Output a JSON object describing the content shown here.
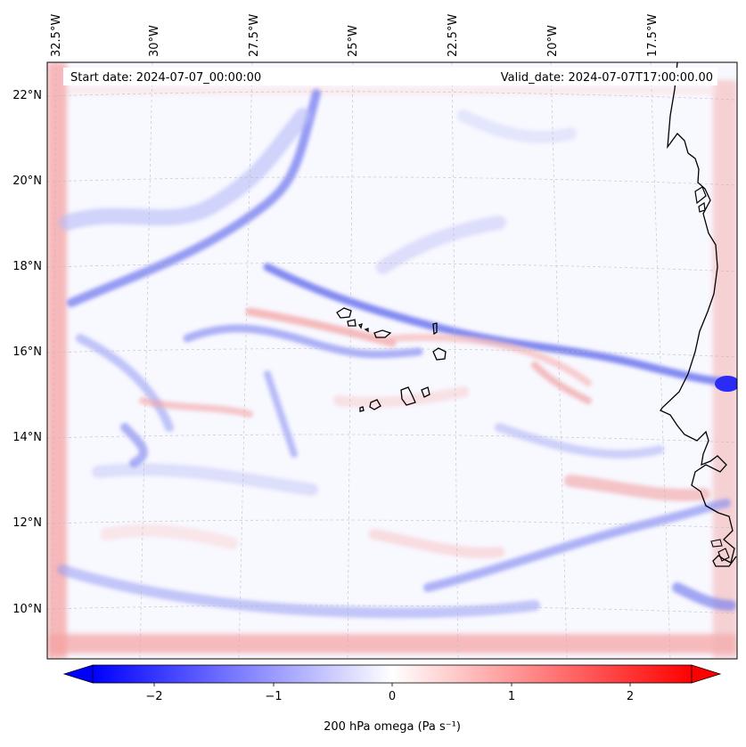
{
  "header": {
    "start_date": "Start date: 2024-07-07_00:00:00",
    "valid_date": "Valid_date: 2024-07-07T17:00:00.00"
  },
  "axes": {
    "lon_ticks": [
      "32.5°W",
      "30°W",
      "27.5°W",
      "25°W",
      "22.5°W",
      "20°W",
      "17.5°W"
    ],
    "lat_ticks": [
      "22°N",
      "20°N",
      "18°N",
      "16°N",
      "14°N",
      "12°N",
      "10°N"
    ]
  },
  "colorbar": {
    "label": "200 hPa omega (Pa s⁻¹)",
    "ticks": [
      "−2",
      "−1",
      "0",
      "1",
      "2"
    ],
    "min": -2.7,
    "max": 2.7,
    "low_color": "#0000ff",
    "mid_color": "#ffffff",
    "high_color": "#ff0000"
  },
  "colors": {
    "background_field": "#f8f8ff",
    "coastline": "#000000",
    "gridline": "#bbbbbb"
  }
}
